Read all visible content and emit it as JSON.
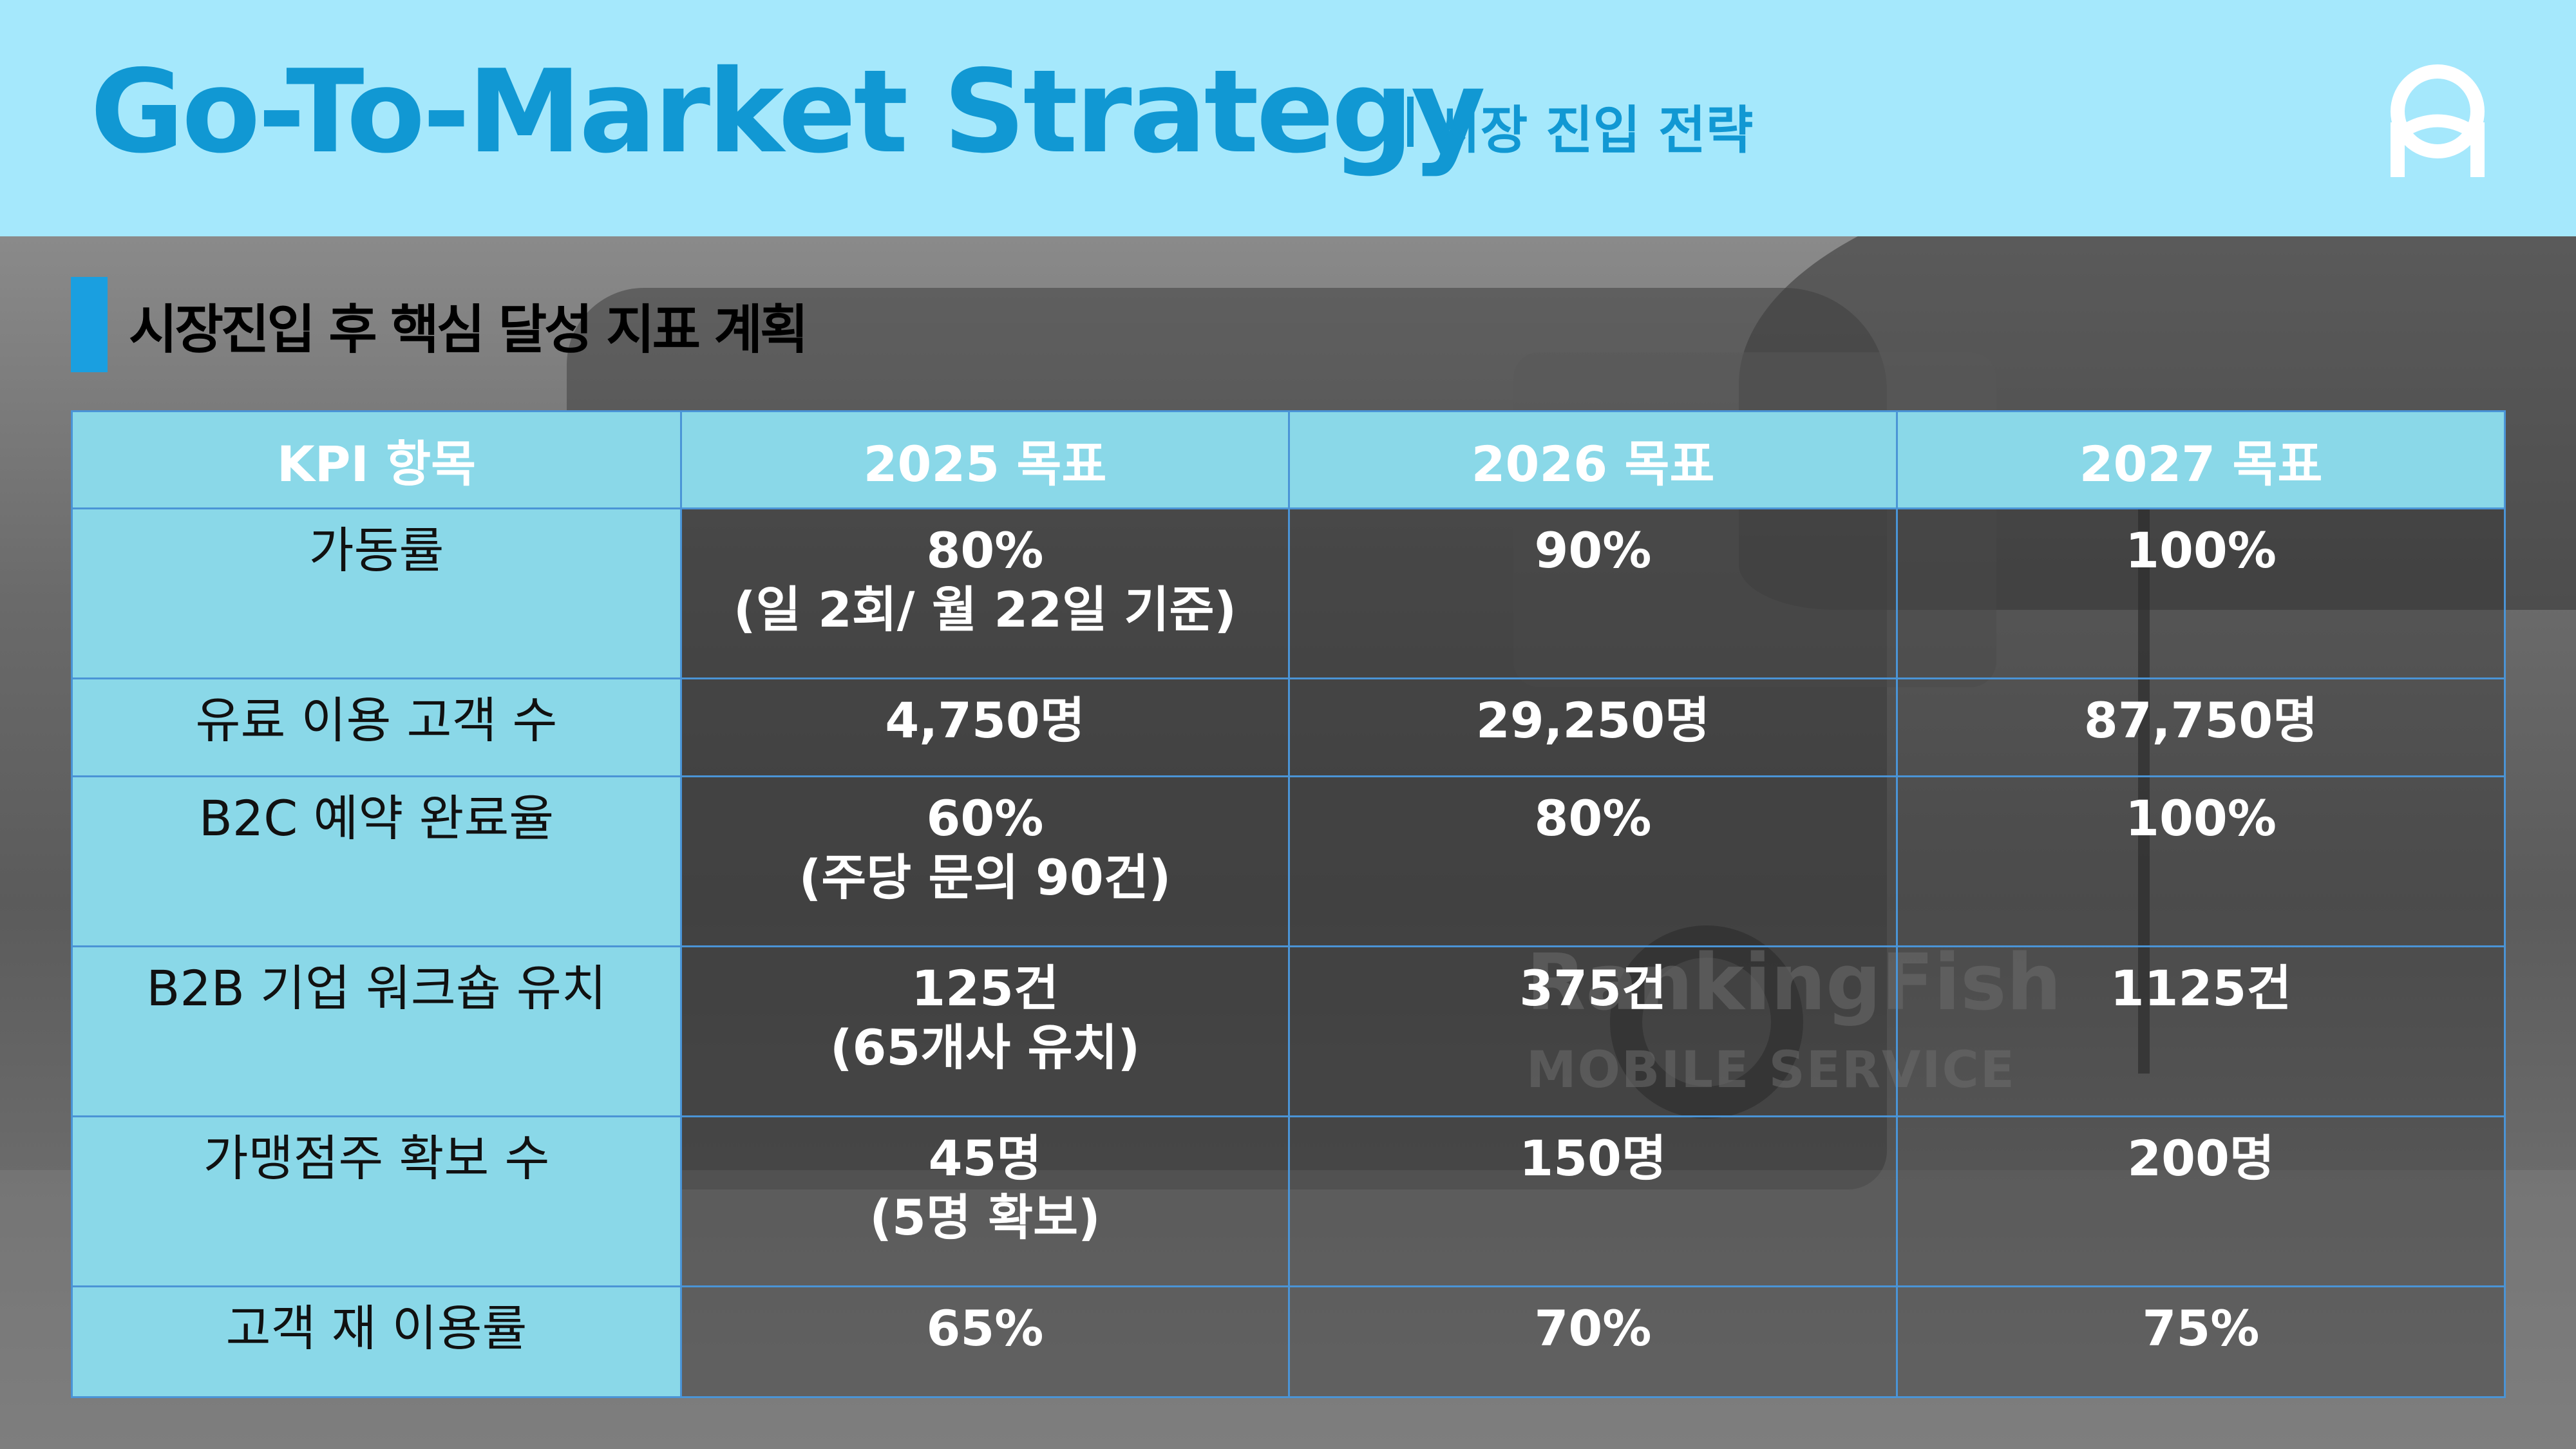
{
  "header": {
    "title": "Go-To-Market Strategy",
    "subtitle": "시장 진입 전략"
  },
  "section": {
    "title": "시장진입 후 핵심 달성 지표 계획"
  },
  "background": {
    "brand_text": "RankingFish",
    "brand_sub": "MOBILE SERVICE"
  },
  "table": {
    "headers": [
      "KPI 항목",
      "2025 목표",
      "2026 목표",
      "2027 목표"
    ],
    "rows": [
      {
        "label": "가동률",
        "cells": [
          [
            "80%",
            "(일 2회/ 월 22일 기준)"
          ],
          [
            "90%",
            ""
          ],
          [
            "100%",
            ""
          ]
        ]
      },
      {
        "label": "유료 이용 고객 수",
        "cells": [
          [
            "4,750명",
            ""
          ],
          [
            "29,250명",
            ""
          ],
          [
            "87,750명",
            ""
          ]
        ]
      },
      {
        "label": "B2C 예약 완료율",
        "cells": [
          [
            "60%",
            "(주당 문의 90건)"
          ],
          [
            "80%",
            ""
          ],
          [
            "100%",
            ""
          ]
        ]
      },
      {
        "label": "B2B 기업 워크숍 유치",
        "cells": [
          [
            "125건",
            "(65개사 유치)"
          ],
          [
            "375건",
            ""
          ],
          [
            "1125건",
            ""
          ]
        ]
      },
      {
        "label": "가맹점주 확보 수",
        "cells": [
          [
            "45명",
            "(5명 확보)"
          ],
          [
            "150명",
            ""
          ],
          [
            "200명",
            ""
          ]
        ]
      },
      {
        "label": "고객 재 이용률",
        "cells": [
          [
            "65%",
            ""
          ],
          [
            "70%",
            ""
          ],
          [
            "75%",
            ""
          ]
        ]
      }
    ]
  },
  "colors": {
    "header_bg": "#a5e8fc",
    "title": "#1198d3",
    "table_header_bg": "#8ad8e8",
    "accent_bar": "#1a9fe0",
    "grid": "#4a94d6"
  },
  "icons": {
    "logo": "rankingfish-logo-icon"
  }
}
